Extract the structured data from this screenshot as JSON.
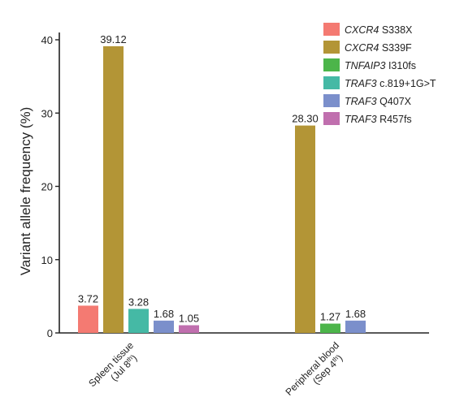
{
  "chart_data": {
    "type": "bar",
    "ylabel": "Variant allele frequency (%)",
    "xlabel": "",
    "ylim": [
      0,
      42
    ],
    "yticks": [
      0,
      10,
      20,
      30,
      40
    ],
    "categories": [
      {
        "line1": "Spleen tissue",
        "line2_pre": "(Jul 8",
        "line2_sup": "th",
        "line2_post": ")"
      },
      {
        "line1": "Peripheral blood",
        "line2_pre": "(Sep 4",
        "line2_sup": "th",
        "line2_post": ")"
      }
    ],
    "series": [
      {
        "gene": "CXCR4",
        "mutation": "S338X",
        "color": "#f47a72",
        "values": [
          3.72,
          null
        ],
        "labels": [
          "3.72",
          ""
        ]
      },
      {
        "gene": "CXCR4",
        "mutation": "S339F",
        "color": "#b39536",
        "values": [
          39.12,
          28.3
        ],
        "labels": [
          "39.12",
          "28.30"
        ]
      },
      {
        "gene": "TNFAIP3",
        "mutation": "I310fs",
        "color": "#4cb54a",
        "values": [
          null,
          1.27
        ],
        "labels": [
          "",
          "1.27"
        ]
      },
      {
        "gene": "TRAF3",
        "mutation": "c.819+1G>T",
        "color": "#45b9a5",
        "values": [
          3.28,
          null
        ],
        "labels": [
          "3.28",
          ""
        ]
      },
      {
        "gene": "TRAF3",
        "mutation": "Q407X",
        "color": "#7b8fcb",
        "values": [
          1.68,
          1.68
        ],
        "labels": [
          "1.68",
          "1.68"
        ]
      },
      {
        "gene": "TRAF3",
        "mutation": "R457fs",
        "color": "#c06fae",
        "values": [
          1.05,
          null
        ],
        "labels": [
          "1.05",
          ""
        ]
      }
    ],
    "legend_position": "top-right",
    "grid": false
  }
}
